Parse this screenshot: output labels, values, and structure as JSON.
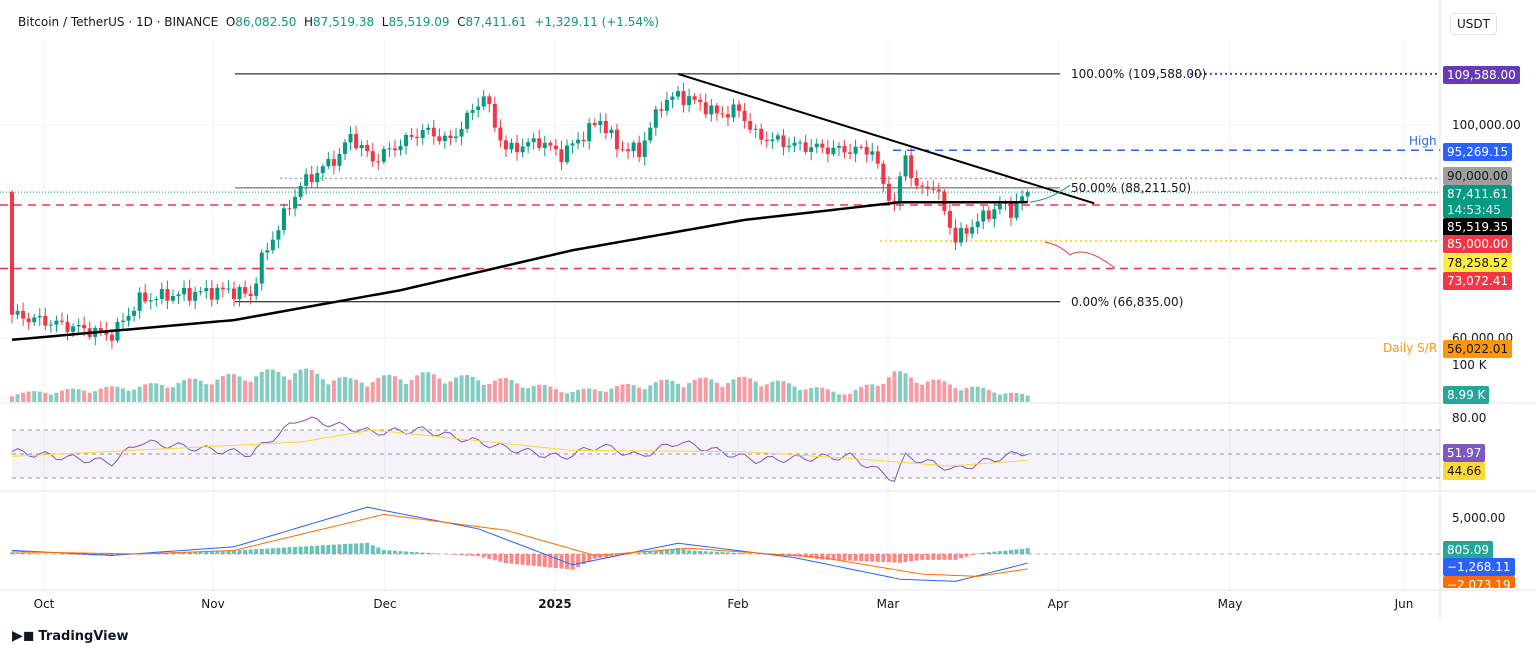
{
  "legend": {
    "symbol": "Bitcoin / TetherUS · 1D · BINANCE",
    "open_label": "O",
    "open": "86,082.50",
    "high_label": "H",
    "high": "87,519.38",
    "low_label": "L",
    "low": "85,519.09",
    "close_label": "C",
    "close": "87,411.61",
    "change": "+1,329.11 (+1.54%)"
  },
  "currency": "USDT",
  "price_axis": {
    "ticks": [
      "100,000.00",
      "60,000.00"
    ]
  },
  "tags": {
    "fib100": "109,588.00",
    "high": "95,269.15",
    "high_label": "High",
    "level90": "90,000.00",
    "last": "87,411.61",
    "countdown": "14:53:45",
    "ma": "85,519.35",
    "level85": "85,000.00",
    "level78": "78,258.52",
    "level73": "73,072.41",
    "daily_sr": "56,022.01",
    "daily_sr_label": "Daily S/R"
  },
  "annotations": {
    "fib100": "100.00% (109,588.00)",
    "fib50": "50.00% (88,211.50)",
    "fib0": "0.00% (66,835.00)"
  },
  "volume": {
    "axis": "100 K",
    "value": "8.99 K"
  },
  "rsi": {
    "axis": "80.00",
    "value": "51.97",
    "ma_value": "44.66"
  },
  "macd": {
    "axis": "5,000.00",
    "hist": "805.09",
    "macd": "−1,268.11",
    "signal": "−2,073.19"
  },
  "time_axis": [
    "Oct",
    "Nov",
    "Dec",
    "2025",
    "Feb",
    "Mar",
    "Apr",
    "May",
    "Jun"
  ],
  "branding": "TradingView",
  "colors": {
    "up": "#089981",
    "down": "#f23645",
    "fib": "#673ab7",
    "high": "#2962ff",
    "yellow": "#ffeb3b",
    "orange": "#ff9800",
    "rsi": "#7e57c2",
    "macd": "#2962ff",
    "signal": "#ff6d00"
  },
  "chart_data": {
    "type": "candlestick",
    "title": "Bitcoin / TetherUS · 1D · BINANCE",
    "ylim": [
      52000,
      115000
    ],
    "close_keypoints": [
      [
        "2024-09-22",
        64400
      ],
      [
        "2024-10-01",
        62500
      ],
      [
        "2024-10-10",
        60600
      ],
      [
        "2024-10-15",
        67200
      ],
      [
        "2024-10-20",
        68000
      ],
      [
        "2024-10-31",
        69000
      ],
      [
        "2024-11-04",
        68000
      ],
      [
        "2024-11-06",
        74700
      ],
      [
        "2024-11-11",
        85000
      ],
      [
        "2024-11-13",
        88700
      ],
      [
        "2024-11-20",
        94400
      ],
      [
        "2024-11-22",
        98000
      ],
      [
        "2024-11-26",
        93400
      ],
      [
        "2024-12-05",
        99000
      ],
      [
        "2024-12-10",
        97000
      ],
      [
        "2024-12-16",
        105600
      ],
      [
        "2024-12-18",
        100000
      ],
      [
        "2024-12-20",
        95300
      ],
      [
        "2024-12-26",
        97000
      ],
      [
        "2024-12-30",
        94400
      ],
      [
        "2025-01-06",
        101000
      ],
      [
        "2025-01-09",
        96000
      ],
      [
        "2025-01-13",
        95000
      ],
      [
        "2025-01-17",
        104000
      ],
      [
        "2025-01-20",
        105600
      ],
      [
        "2025-01-24",
        104000
      ],
      [
        "2025-01-27",
        102000
      ],
      [
        "2025-01-31",
        102800
      ],
      [
        "2025-02-03",
        98000
      ],
      [
        "2025-02-10",
        96200
      ],
      [
        "2025-02-18",
        95300
      ],
      [
        "2025-02-24",
        95300
      ],
      [
        "2025-02-26",
        88700
      ],
      [
        "2025-02-28",
        85000
      ],
      [
        "2025-03-02",
        94400
      ],
      [
        "2025-03-04",
        87800
      ],
      [
        "2025-03-07",
        88700
      ],
      [
        "2025-03-09",
        84000
      ],
      [
        "2025-03-11",
        78400
      ],
      [
        "2025-03-14",
        81200
      ],
      [
        "2025-03-19",
        85000
      ],
      [
        "2025-03-21",
        84000
      ],
      [
        "2025-03-24",
        87411.61
      ]
    ],
    "ma200_keypoints": [
      [
        "2024-09-22",
        59700
      ],
      [
        "2024-11-01",
        63400
      ],
      [
        "2024-12-01",
        69000
      ],
      [
        "2025-01-01",
        76500
      ],
      [
        "2025-02-01",
        82200
      ],
      [
        "2025-03-01",
        85500
      ],
      [
        "2025-03-24",
        85519.35
      ]
    ],
    "volume_keypoints_k": [
      [
        "2024-09-22",
        12
      ],
      [
        "2024-10-15",
        22
      ],
      [
        "2024-11-06",
        40
      ],
      [
        "2024-11-12",
        45
      ],
      [
        "2024-11-22",
        30
      ],
      [
        "2024-12-05",
        38
      ],
      [
        "2024-12-20",
        30
      ],
      [
        "2025-01-01",
        15
      ],
      [
        "2025-01-20",
        30
      ],
      [
        "2025-02-03",
        32
      ],
      [
        "2025-02-20",
        12
      ],
      [
        "2025-02-28",
        40
      ],
      [
        "2025-03-10",
        25
      ],
      [
        "2025-03-24",
        8.99
      ]
    ],
    "rsi_keypoints": [
      [
        "2024-09-22",
        52
      ],
      [
        "2024-10-10",
        43
      ],
      [
        "2024-10-15",
        60
      ],
      [
        "2024-11-04",
        50
      ],
      [
        "2024-11-13",
        80
      ],
      [
        "2024-11-26",
        68
      ],
      [
        "2024-12-05",
        70
      ],
      [
        "2024-12-20",
        55
      ],
      [
        "2024-12-30",
        47
      ],
      [
        "2025-01-06",
        57
      ],
      [
        "2025-01-13",
        48
      ],
      [
        "2025-01-20",
        60
      ],
      [
        "2025-02-03",
        45
      ],
      [
        "2025-02-20",
        48
      ],
      [
        "2025-02-28",
        29
      ],
      [
        "2025-03-02",
        48
      ],
      [
        "2025-03-11",
        37
      ],
      [
        "2025-03-19",
        47
      ],
      [
        "2025-03-24",
        51.97
      ]
    ],
    "rsi_ma_keypoints": [
      [
        "2024-09-22",
        48
      ],
      [
        "2024-11-13",
        60
      ],
      [
        "2024-11-26",
        70
      ],
      [
        "2025-01-01",
        53
      ],
      [
        "2025-02-01",
        52
      ],
      [
        "2025-02-24",
        45
      ],
      [
        "2025-03-10",
        40
      ],
      [
        "2025-03-24",
        44.66
      ]
    ],
    "macd_keypoints": [
      [
        "2024-09-22",
        500
      ],
      [
        "2024-10-10",
        -200
      ],
      [
        "2024-11-01",
        1000
      ],
      [
        "2024-11-25",
        6500
      ],
      [
        "2024-12-15",
        3500
      ],
      [
        "2025-01-01",
        -1500
      ],
      [
        "2025-01-20",
        1500
      ],
      [
        "2025-02-10",
        -500
      ],
      [
        "2025-03-01",
        -3500
      ],
      [
        "2025-03-11",
        -3800
      ],
      [
        "2025-03-24",
        -1268.11
      ]
    ],
    "signal_keypoints": [
      [
        "2024-09-22",
        300
      ],
      [
        "2024-10-15",
        0
      ],
      [
        "2024-11-01",
        500
      ],
      [
        "2024-11-28",
        5500
      ],
      [
        "2024-12-20",
        3300
      ],
      [
        "2025-01-05",
        -200
      ],
      [
        "2025-01-22",
        800
      ],
      [
        "2025-02-15",
        -500
      ],
      [
        "2025-03-05",
        -2800
      ],
      [
        "2025-03-15",
        -3100
      ],
      [
        "2025-03-24",
        -2073.19
      ]
    ],
    "levels": {
      "fib_100": 109588,
      "fib_50": 88211.5,
      "fib_0": 66835,
      "high": 95269.15,
      "resistance": 90000,
      "support_85k": 85000,
      "support_78k": 78258.52,
      "support_73k": 73072.41
    },
    "trendline": [
      [
        "2025-01-20",
        109588
      ],
      [
        "2025-04-05",
        85300
      ]
    ]
  }
}
